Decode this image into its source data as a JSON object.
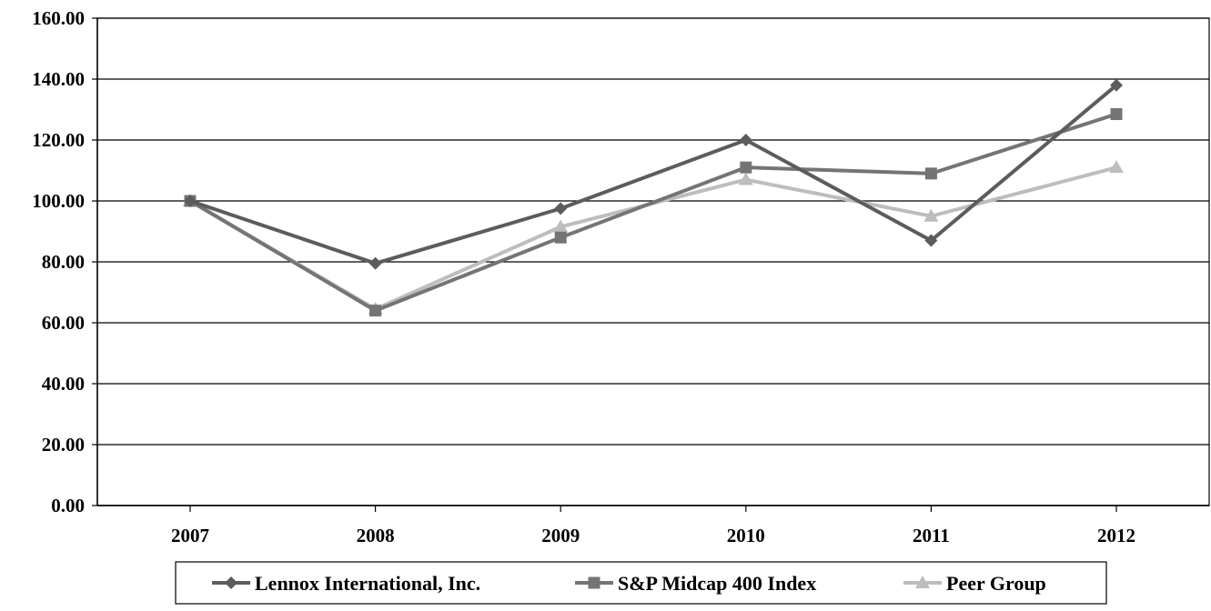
{
  "chart_data": {
    "type": "line",
    "title": "",
    "xlabel": "",
    "ylabel": "",
    "categories": [
      "2007",
      "2008",
      "2009",
      "2010",
      "2011",
      "2012"
    ],
    "ylim": [
      0,
      160
    ],
    "yticks": [
      "0.00",
      "20.00",
      "40.00",
      "60.00",
      "80.00",
      "100.00",
      "120.00",
      "140.00",
      "160.00"
    ],
    "grid": true,
    "legend_position": "bottom",
    "series": [
      {
        "name": "Lennox International, Inc.",
        "marker": "diamond",
        "color": "#5c5c5c",
        "values": [
          100.0,
          79.5,
          97.5,
          120.0,
          87.0,
          138.0
        ]
      },
      {
        "name": "S&P Midcap 400 Index",
        "marker": "square",
        "color": "#747474",
        "values": [
          100.0,
          64.0,
          88.0,
          111.0,
          109.0,
          128.5
        ]
      },
      {
        "name": "Peer Group",
        "marker": "triangle",
        "color": "#bdbdbd",
        "values": [
          100.0,
          64.5,
          91.5,
          107.0,
          95.0,
          111.0
        ]
      }
    ]
  }
}
